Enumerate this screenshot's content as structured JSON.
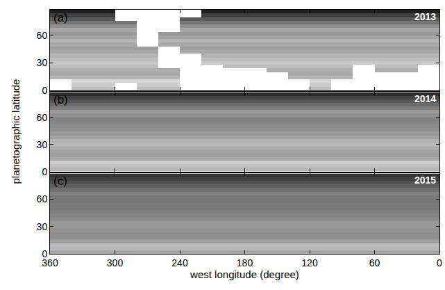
{
  "chart_data": {
    "type": "heatmap",
    "xlabel": "west longitude (degree)",
    "ylabel": "planetographic latitude",
    "xlim": [
      360,
      0
    ],
    "xticks": [
      360,
      300,
      240,
      180,
      120,
      60,
      0
    ],
    "ylim": [
      0,
      88
    ],
    "yticks": [
      0,
      30,
      60
    ],
    "zlim": [
      0,
      100
    ],
    "panels": [
      {
        "label": "(a)",
        "title": "2013",
        "x": [
          360,
          340,
          320,
          300,
          280,
          260,
          240,
          220,
          200,
          180,
          160,
          140,
          120,
          100,
          80,
          60,
          40,
          20,
          0
        ],
        "y": [
          0,
          4,
          8,
          12,
          16,
          20,
          24,
          28,
          32,
          36,
          40,
          44,
          48,
          52,
          56,
          60,
          64,
          68,
          72,
          76,
          80,
          84,
          88
        ],
        "z": [
          [
            null,
            74,
            74,
            null,
            74,
            74,
            null,
            null,
            null,
            null,
            null,
            null,
            74,
            null,
            null,
            null,
            null,
            null
          ],
          [
            null,
            80,
            80,
            null,
            80,
            80,
            null,
            null,
            null,
            null,
            null,
            null,
            80,
            null,
            null,
            null,
            null,
            null
          ],
          [
            null,
            84,
            84,
            84,
            84,
            84,
            null,
            null,
            null,
            null,
            null,
            null,
            84,
            null,
            null,
            null,
            null,
            null
          ],
          [
            70,
            70,
            70,
            70,
            70,
            70,
            null,
            null,
            null,
            null,
            null,
            70,
            70,
            70,
            null,
            null,
            null,
            null
          ],
          [
            66,
            66,
            66,
            66,
            66,
            66,
            null,
            null,
            null,
            null,
            null,
            66,
            66,
            66,
            null,
            null,
            null,
            null
          ],
          [
            68,
            68,
            68,
            68,
            68,
            68,
            null,
            null,
            null,
            null,
            68,
            68,
            68,
            68,
            null,
            68,
            68,
            null
          ],
          [
            74,
            74,
            74,
            74,
            74,
            null,
            null,
            null,
            74,
            74,
            74,
            74,
            74,
            74,
            null,
            74,
            74,
            null
          ],
          [
            78,
            78,
            78,
            78,
            78,
            null,
            null,
            78,
            78,
            78,
            78,
            78,
            78,
            78,
            78,
            78,
            78,
            78
          ],
          [
            74,
            74,
            74,
            74,
            74,
            null,
            null,
            74,
            74,
            74,
            74,
            74,
            74,
            74,
            74,
            74,
            74,
            74
          ],
          [
            70,
            70,
            70,
            70,
            70,
            null,
            null,
            70,
            70,
            70,
            70,
            70,
            70,
            70,
            70,
            70,
            70,
            70
          ],
          [
            66,
            66,
            66,
            66,
            66,
            null,
            66,
            66,
            66,
            66,
            66,
            66,
            66,
            66,
            66,
            66,
            66,
            66
          ],
          [
            62,
            62,
            62,
            62,
            62,
            null,
            62,
            62,
            62,
            62,
            62,
            62,
            62,
            62,
            62,
            62,
            62,
            62
          ],
          [
            66,
            66,
            66,
            66,
            null,
            66,
            66,
            66,
            66,
            66,
            66,
            66,
            66,
            66,
            66,
            66,
            66,
            66
          ],
          [
            70,
            70,
            70,
            70,
            null,
            70,
            70,
            70,
            70,
            70,
            70,
            70,
            70,
            70,
            70,
            70,
            70,
            70
          ],
          [
            64,
            64,
            64,
            64,
            null,
            64,
            64,
            64,
            64,
            64,
            64,
            64,
            64,
            64,
            64,
            64,
            64,
            64
          ],
          [
            60,
            60,
            60,
            60,
            null,
            60,
            60,
            60,
            60,
            60,
            60,
            60,
            60,
            60,
            60,
            60,
            60,
            60
          ],
          [
            66,
            66,
            66,
            66,
            null,
            null,
            66,
            66,
            66,
            66,
            66,
            66,
            66,
            66,
            66,
            66,
            66,
            66
          ],
          [
            56,
            56,
            56,
            56,
            null,
            null,
            56,
            56,
            56,
            56,
            56,
            56,
            56,
            56,
            56,
            56,
            56,
            56
          ],
          [
            46,
            46,
            46,
            46,
            null,
            null,
            46,
            46,
            46,
            46,
            46,
            46,
            46,
            46,
            46,
            46,
            46,
            46
          ],
          [
            36,
            36,
            36,
            null,
            null,
            null,
            36,
            36,
            36,
            36,
            36,
            36,
            36,
            36,
            36,
            36,
            36,
            36
          ],
          [
            24,
            24,
            24,
            null,
            null,
            null,
            null,
            24,
            24,
            24,
            24,
            24,
            24,
            24,
            24,
            24,
            24,
            24
          ],
          [
            12,
            12,
            12,
            null,
            null,
            null,
            null,
            12,
            12,
            12,
            12,
            12,
            12,
            12,
            12,
            12,
            12,
            12
          ]
        ]
      },
      {
        "label": "(b)",
        "title": "2014",
        "x": [
          360,
          0
        ],
        "y": [
          0,
          4,
          8,
          12,
          16,
          20,
          24,
          28,
          32,
          36,
          40,
          44,
          48,
          52,
          56,
          60,
          64,
          68,
          72,
          76,
          80,
          84,
          88
        ],
        "z": [
          [
            72
          ],
          [
            76
          ],
          [
            80
          ],
          [
            66
          ],
          [
            62
          ],
          [
            64
          ],
          [
            68
          ],
          [
            72
          ],
          [
            70
          ],
          [
            64
          ],
          [
            60
          ],
          [
            56
          ],
          [
            54
          ],
          [
            52
          ],
          [
            50
          ],
          [
            56
          ],
          [
            60
          ],
          [
            50
          ],
          [
            42
          ],
          [
            34
          ],
          [
            26
          ],
          [
            18
          ]
        ]
      },
      {
        "label": "(c)",
        "title": "2015",
        "x": [
          360,
          0
        ],
        "y": [
          0,
          4,
          8,
          12,
          16,
          20,
          24,
          28,
          32,
          36,
          40,
          44,
          48,
          52,
          56,
          60,
          64,
          68,
          72,
          76,
          80,
          84,
          88
        ],
        "z": [
          [
            66
          ],
          [
            72
          ],
          [
            74
          ],
          [
            62
          ],
          [
            56
          ],
          [
            56
          ],
          [
            58
          ],
          [
            60
          ],
          [
            60
          ],
          [
            56
          ],
          [
            52
          ],
          [
            50
          ],
          [
            48
          ],
          [
            48
          ],
          [
            46
          ],
          [
            48
          ],
          [
            50
          ],
          [
            44
          ],
          [
            38
          ],
          [
            32
          ],
          [
            26
          ],
          [
            20
          ]
        ]
      }
    ]
  }
}
